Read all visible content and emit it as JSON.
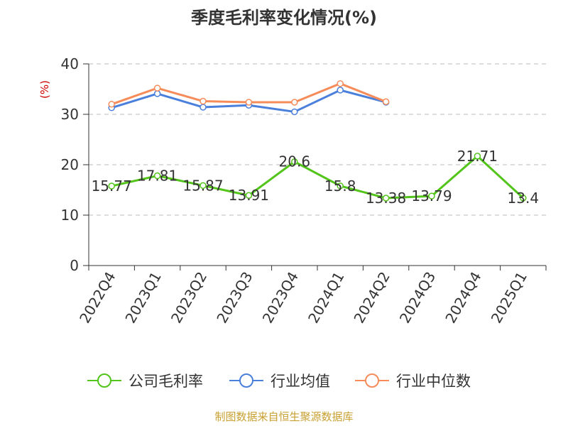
{
  "chart_data": {
    "type": "line",
    "title": "季度毛利率变化情况(%)",
    "unit_label": "(%)",
    "categories": [
      "2022Q4",
      "2023Q1",
      "2023Q2",
      "2023Q3",
      "2023Q4",
      "2024Q1",
      "2024Q2",
      "2024Q3",
      "2024Q4",
      "2025Q1"
    ],
    "ylim": [
      0,
      40
    ],
    "yticks": [
      0,
      10,
      20,
      30,
      40
    ],
    "grid": true,
    "legend_position": "bottom",
    "series": [
      {
        "name": "公司毛利率",
        "color": "#52c41a",
        "values": [
          15.77,
          17.81,
          15.87,
          13.91,
          20.6,
          15.8,
          13.38,
          13.79,
          21.71,
          13.4
        ],
        "labels": [
          "15.77",
          "17.81",
          "15.87",
          "13.91",
          "20.6",
          "15.8",
          "13.38",
          "13.79",
          "21.71",
          "13.4"
        ]
      },
      {
        "name": "行业均值",
        "color": "#4a7fdc",
        "values": [
          31.3,
          34.1,
          31.4,
          31.8,
          30.5,
          34.8,
          32.4,
          null,
          null,
          null
        ]
      },
      {
        "name": "行业中位数",
        "color": "#f58c5a",
        "values": [
          32.0,
          35.2,
          32.6,
          32.4,
          32.4,
          36.1,
          32.5,
          null,
          null,
          null
        ]
      }
    ]
  },
  "source": "制图数据来自恒生聚源数据库"
}
